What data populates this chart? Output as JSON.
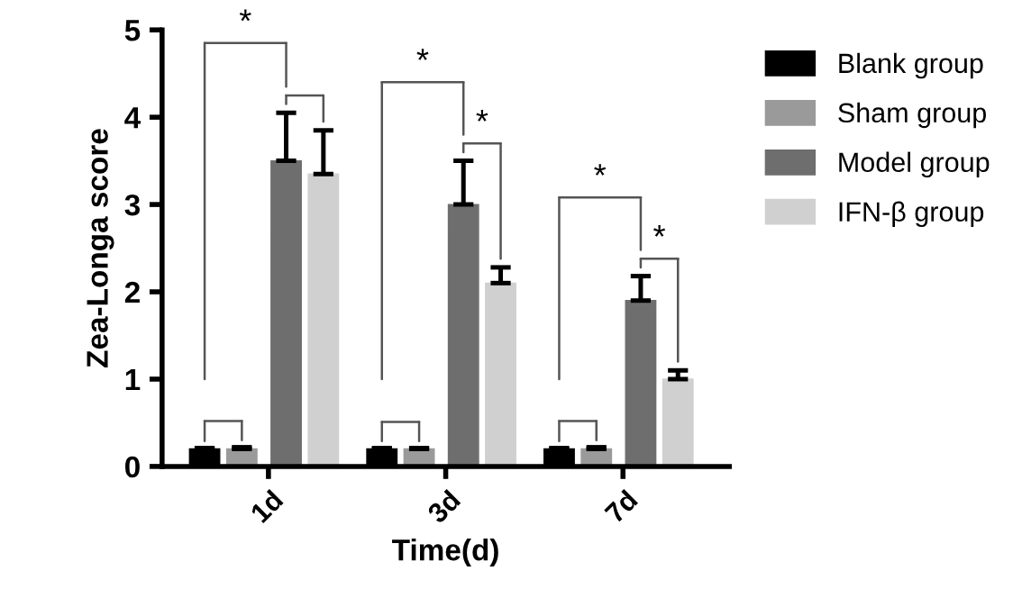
{
  "chart_data": {
    "type": "bar",
    "xlabel": "Time(d)",
    "ylabel": "Zea-Longa score",
    "categories": [
      "1d",
      "3d",
      "7d"
    ],
    "series": [
      {
        "name": "Blank group",
        "color": "#000000",
        "values": [
          0.2,
          0.2,
          0.2
        ],
        "errors": [
          [
            0.2,
            0.21
          ],
          [
            0.2,
            0.21
          ],
          [
            0.2,
            0.21
          ]
        ]
      },
      {
        "name": "Sham group",
        "color": "#9a9a9a",
        "values": [
          0.2,
          0.2,
          0.2
        ],
        "errors": [
          [
            0.2,
            0.22
          ],
          [
            0.2,
            0.21
          ],
          [
            0.2,
            0.22
          ]
        ]
      },
      {
        "name": "Model group",
        "color": "#6e6e6e",
        "values": [
          3.5,
          3.0,
          1.9
        ],
        "errors": [
          [
            3.5,
            4.05
          ],
          [
            3.0,
            3.5
          ],
          [
            1.9,
            2.18
          ]
        ]
      },
      {
        "name": "IFN-β group",
        "color": "#d0d0d0",
        "values": [
          3.35,
          2.1,
          1.0
        ],
        "errors": [
          [
            3.35,
            3.85
          ],
          [
            2.1,
            2.28
          ],
          [
            1.0,
            1.1
          ]
        ]
      }
    ],
    "ylim": [
      0,
      5
    ],
    "yticks": [
      0,
      1,
      2,
      3,
      4,
      5
    ],
    "legend": "right",
    "grid": false,
    "annotations": [
      "*",
      "*",
      "*",
      "*",
      "*"
    ]
  }
}
